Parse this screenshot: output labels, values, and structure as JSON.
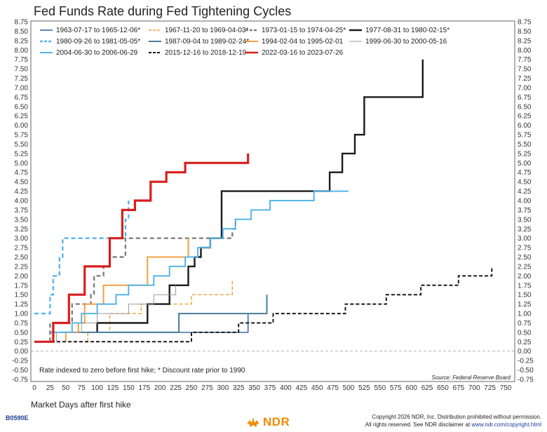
{
  "chart_data": {
    "type": "line",
    "title": "Fed Funds Rate during Fed Tightening Cycles",
    "xlabel": "Market Days after first hike",
    "ylabel": "",
    "xlim": [
      0,
      760
    ],
    "ylim": [
      -0.75,
      8.75
    ],
    "x_ticks": [
      0,
      25,
      50,
      75,
      100,
      125,
      150,
      175,
      200,
      225,
      250,
      275,
      300,
      325,
      350,
      375,
      400,
      425,
      450,
      475,
      500,
      525,
      550,
      575,
      600,
      625,
      650,
      675,
      700,
      725,
      750
    ],
    "y_ticks": [
      -0.75,
      -0.5,
      -0.25,
      0.0,
      0.25,
      0.5,
      0.75,
      1.0,
      1.25,
      1.5,
      1.75,
      2.0,
      2.25,
      2.5,
      2.75,
      3.0,
      3.25,
      3.5,
      3.75,
      4.0,
      4.25,
      4.5,
      4.75,
      5.0,
      5.25,
      5.5,
      5.75,
      6.0,
      6.25,
      6.5,
      6.75,
      7.0,
      7.25,
      7.5,
      7.75,
      8.0,
      8.25,
      8.5,
      8.75
    ],
    "y_tick_labels": [
      "-0.75",
      "-0.50",
      "-0.25",
      "0.00",
      "0.25",
      "0.50",
      "0.75",
      "1.00",
      "1.25",
      "1.50",
      "1.75",
      "2.00",
      "2.25",
      "2.50",
      "2.75",
      "3.00",
      "3.25",
      "3.50",
      "3.75",
      "4.00",
      "4.25",
      "4.50",
      "4.75",
      "5.00",
      "5.25",
      "5.50",
      "5.75",
      "6.00",
      "6.25",
      "6.50",
      "6.75",
      "7.00",
      "7.25",
      "7.50",
      "7.75",
      "8.00",
      "8.25",
      "8.50",
      "8.75"
    ],
    "grid": false,
    "zero_line": true,
    "legend_position": "top-left",
    "note": "Rate indexed to zero before first hike; * Discount rate prior to 1990",
    "source": "Source: Federal Reserve Board",
    "series": [
      {
        "name": "1963-07-17 to 1965-12-06*",
        "color": "#2e5fa3",
        "dash": "solid",
        "width": 1.4,
        "x": [
          25,
          340
        ],
        "y": [
          0.5,
          1.0
        ],
        "step_points": [
          [
            25,
            0.5
          ],
          [
            340,
            0.5
          ],
          [
            340,
            1.0
          ]
        ]
      },
      {
        "name": "1967-11-20 to 1969-04-03*",
        "color": "#f0a030",
        "dash": "dashed",
        "width": 1.4,
        "step_points": [
          [
            85,
            0.25
          ],
          [
            85,
            0.5
          ],
          [
            120,
            0.5
          ],
          [
            120,
            1.0
          ],
          [
            170,
            1.0
          ],
          [
            170,
            1.25
          ],
          [
            250,
            1.25
          ],
          [
            250,
            1.5
          ],
          [
            315,
            1.5
          ],
          [
            315,
            1.9
          ]
        ]
      },
      {
        "name": "1973-01-15 to 1974-04-25*",
        "color": "#808080",
        "dash": "dashed",
        "width": 2.4,
        "step_points": [
          [
            25,
            0.25
          ],
          [
            25,
            0.75
          ],
          [
            60,
            0.75
          ],
          [
            60,
            1.25
          ],
          [
            90,
            1.25
          ],
          [
            90,
            1.5
          ],
          [
            95,
            1.5
          ],
          [
            95,
            2.0
          ],
          [
            110,
            2.0
          ],
          [
            110,
            2.25
          ],
          [
            120,
            2.25
          ],
          [
            120,
            2.5
          ],
          [
            145,
            2.5
          ],
          [
            145,
            3.0
          ],
          [
            315,
            3.0
          ],
          [
            315,
            3.25
          ],
          [
            320,
            3.25
          ],
          [
            320,
            3.5
          ]
        ]
      },
      {
        "name": "1977-08-31 to 1980-02-15*",
        "color": "#1a1a1a",
        "dash": "solid",
        "width": 2.4,
        "step_points": [
          [
            100,
            0.5
          ],
          [
            100,
            0.75
          ],
          [
            180,
            0.75
          ],
          [
            180,
            1.25
          ],
          [
            215,
            1.25
          ],
          [
            215,
            1.75
          ],
          [
            245,
            1.75
          ],
          [
            245,
            2.25
          ],
          [
            255,
            2.25
          ],
          [
            255,
            2.5
          ],
          [
            265,
            2.5
          ],
          [
            265,
            2.75
          ],
          [
            280,
            2.75
          ],
          [
            280,
            3.0
          ],
          [
            298,
            3.0
          ],
          [
            298,
            4.25
          ],
          [
            470,
            4.25
          ],
          [
            470,
            4.75
          ],
          [
            490,
            4.75
          ],
          [
            490,
            5.25
          ],
          [
            510,
            5.25
          ],
          [
            510,
            5.75
          ],
          [
            525,
            5.75
          ],
          [
            525,
            6.75
          ],
          [
            618,
            6.75
          ],
          [
            618,
            7.75
          ]
        ]
      },
      {
        "name": "1980-09-26 to 1981-05-05*",
        "color": "#56b4e9",
        "dash": "dashed",
        "width": 2.4,
        "step_points": [
          [
            0,
            1.0
          ],
          [
            25,
            1.0
          ],
          [
            25,
            1.5
          ],
          [
            30,
            1.5
          ],
          [
            30,
            2.0
          ],
          [
            40,
            2.0
          ],
          [
            40,
            2.5
          ],
          [
            45,
            2.5
          ],
          [
            45,
            3.0
          ],
          [
            145,
            3.0
          ],
          [
            145,
            3.5
          ],
          [
            150,
            3.5
          ],
          [
            150,
            4.0
          ]
        ]
      },
      {
        "name": "1987-09-04 to 1989-02-24*",
        "color": "#4a7c99",
        "dash": "solid",
        "width": 2.0,
        "step_points": [
          [
            40,
            0.5
          ],
          [
            230,
            0.5
          ],
          [
            230,
            1.0
          ],
          [
            370,
            1.0
          ],
          [
            370,
            1.5
          ]
        ]
      },
      {
        "name": "1994-02-04 to 1995-02-01",
        "color": "#f4a040",
        "dash": "solid",
        "width": 2.0,
        "step_points": [
          [
            50,
            0.25
          ],
          [
            50,
            0.5
          ],
          [
            70,
            0.5
          ],
          [
            70,
            0.75
          ],
          [
            80,
            0.75
          ],
          [
            80,
            1.25
          ],
          [
            110,
            1.25
          ],
          [
            110,
            1.75
          ],
          [
            180,
            1.75
          ],
          [
            180,
            2.5
          ],
          [
            245,
            2.5
          ],
          [
            245,
            3.0
          ]
        ]
      },
      {
        "name": "1999-06-30 to 2000-05-16",
        "color": "#999999",
        "dash": "solid",
        "width": 1.0,
        "step_points": [
          [
            35,
            0.25
          ],
          [
            35,
            0.5
          ],
          [
            75,
            0.5
          ],
          [
            75,
            0.75
          ],
          [
            100,
            0.75
          ],
          [
            100,
            1.0
          ],
          [
            150,
            1.0
          ],
          [
            150,
            1.25
          ],
          [
            190,
            1.25
          ],
          [
            190,
            1.5
          ],
          [
            225,
            1.5
          ],
          [
            225,
            1.75
          ]
        ]
      },
      {
        "name": "2004-06-30 to 2006-06-29",
        "color": "#56b4e9",
        "dash": "solid",
        "width": 2.0,
        "step_points": [
          [
            0,
            0.25
          ],
          [
            30,
            0.25
          ],
          [
            30,
            0.5
          ],
          [
            60,
            0.5
          ],
          [
            60,
            0.75
          ],
          [
            75,
            0.75
          ],
          [
            75,
            1.0
          ],
          [
            100,
            1.0
          ],
          [
            100,
            1.25
          ],
          [
            130,
            1.25
          ],
          [
            130,
            1.5
          ],
          [
            150,
            1.5
          ],
          [
            150,
            1.75
          ],
          [
            190,
            1.75
          ],
          [
            190,
            2.0
          ],
          [
            215,
            2.0
          ],
          [
            215,
            2.25
          ],
          [
            240,
            2.25
          ],
          [
            240,
            2.5
          ],
          [
            260,
            2.5
          ],
          [
            260,
            2.75
          ],
          [
            280,
            2.75
          ],
          [
            280,
            3.0
          ],
          [
            300,
            3.0
          ],
          [
            300,
            3.25
          ],
          [
            320,
            3.25
          ],
          [
            320,
            3.5
          ],
          [
            345,
            3.5
          ],
          [
            345,
            3.75
          ],
          [
            375,
            3.75
          ],
          [
            375,
            4.0
          ],
          [
            445,
            4.0
          ],
          [
            445,
            4.25
          ],
          [
            500,
            4.25
          ],
          [
            500,
            4.25
          ]
        ]
      },
      {
        "name": "2015-12-16 to 2018-12-19",
        "color": "#1a1a1a",
        "dash": "dashed",
        "width": 2.0,
        "step_points": [
          [
            0,
            0.25
          ],
          [
            250,
            0.25
          ],
          [
            250,
            0.5
          ],
          [
            325,
            0.5
          ],
          [
            325,
            0.75
          ],
          [
            380,
            0.75
          ],
          [
            380,
            1.0
          ],
          [
            495,
            1.0
          ],
          [
            495,
            1.25
          ],
          [
            560,
            1.25
          ],
          [
            560,
            1.5
          ],
          [
            615,
            1.5
          ],
          [
            615,
            1.75
          ],
          [
            675,
            1.75
          ],
          [
            675,
            2.0
          ],
          [
            728,
            2.0
          ],
          [
            728,
            2.25
          ]
        ]
      },
      {
        "name": "2022-03-16 to 2023-07-26",
        "color": "#d81e1e",
        "dash": "solid",
        "width": 3.2,
        "step_points": [
          [
            0,
            0.25
          ],
          [
            30,
            0.25
          ],
          [
            30,
            0.75
          ],
          [
            55,
            0.75
          ],
          [
            55,
            1.5
          ],
          [
            80,
            1.5
          ],
          [
            80,
            2.25
          ],
          [
            120,
            2.25
          ],
          [
            120,
            3.0
          ],
          [
            140,
            3.0
          ],
          [
            140,
            3.75
          ],
          [
            160,
            3.75
          ],
          [
            160,
            4.0
          ],
          [
            185,
            4.0
          ],
          [
            185,
            4.5
          ],
          [
            210,
            4.5
          ],
          [
            210,
            4.75
          ],
          [
            240,
            4.75
          ],
          [
            240,
            5.0
          ],
          [
            340,
            5.0
          ],
          [
            340,
            5.25
          ]
        ]
      }
    ]
  },
  "footer": {
    "code": "B0590E",
    "copyright_line1": "Copyright 2026 NDR, Inc. Distribution prohibited without permission.",
    "copyright_line2_prefix": "All rights reserved. See NDR disclaimer at ",
    "copyright_link": "www.ndr.com/copyright.html",
    "logo_text": "NDR",
    "logo_icon": "bull-bear-icon",
    "accent_color": "#f08a00"
  }
}
